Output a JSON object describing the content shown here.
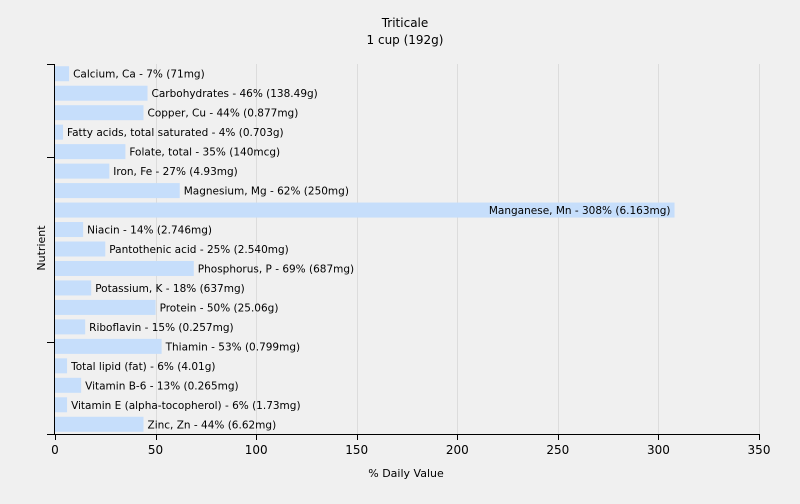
{
  "chart_data": {
    "type": "bar",
    "orientation": "horizontal",
    "title": "Triticale",
    "subtitle": "1 cup (192g)",
    "xlabel": "% Daily Value",
    "ylabel": "Nutrient",
    "xlim": [
      0,
      350
    ],
    "xticks": [
      "0",
      "50",
      "100",
      "150",
      "200",
      "250",
      "300",
      "350"
    ],
    "grid": true,
    "legend": "none",
    "bar_color": "#c6defb",
    "categories": [
      "Calcium, Ca",
      "Carbohydrates",
      "Copper, Cu",
      "Fatty acids, total saturated",
      "Folate, total",
      "Iron, Fe",
      "Magnesium, Mg",
      "Manganese, Mn",
      "Niacin",
      "Pantothenic acid",
      "Phosphorus, P",
      "Potassium, K",
      "Protein",
      "Riboflavin",
      "Thiamin",
      "Total lipid (fat)",
      "Vitamin B-6",
      "Vitamin E (alpha-tocopherol)",
      "Zinc, Zn"
    ],
    "values": [
      7,
      46,
      44,
      4,
      35,
      27,
      62,
      308,
      14,
      25,
      69,
      18,
      50,
      15,
      53,
      6,
      13,
      6,
      44
    ],
    "labels": [
      "Calcium, Ca - 7% (71mg)",
      "Carbohydrates - 46% (138.49g)",
      "Copper, Cu - 44% (0.877mg)",
      "Fatty acids, total saturated - 4% (0.703g)",
      "Folate, total - 35% (140mcg)",
      "Iron, Fe - 27% (4.93mg)",
      "Magnesium, Mg - 62% (250mg)",
      "Manganese, Mn - 308% (6.163mg)",
      "Niacin - 14% (2.746mg)",
      "Pantothenic acid - 25% (2.540mg)",
      "Phosphorus, P - 69% (687mg)",
      "Potassium, K - 18% (637mg)",
      "Protein - 50% (25.06g)",
      "Riboflavin - 15% (0.257mg)",
      "Thiamin - 53% (0.799mg)",
      "Total lipid (fat) - 6% (4.01g)",
      "Vitamin B-6 - 13% (0.265mg)",
      "Vitamin E (alpha-tocopherol) - 6% (1.73mg)",
      "Zinc, Zn - 44% (6.62mg)"
    ]
  }
}
